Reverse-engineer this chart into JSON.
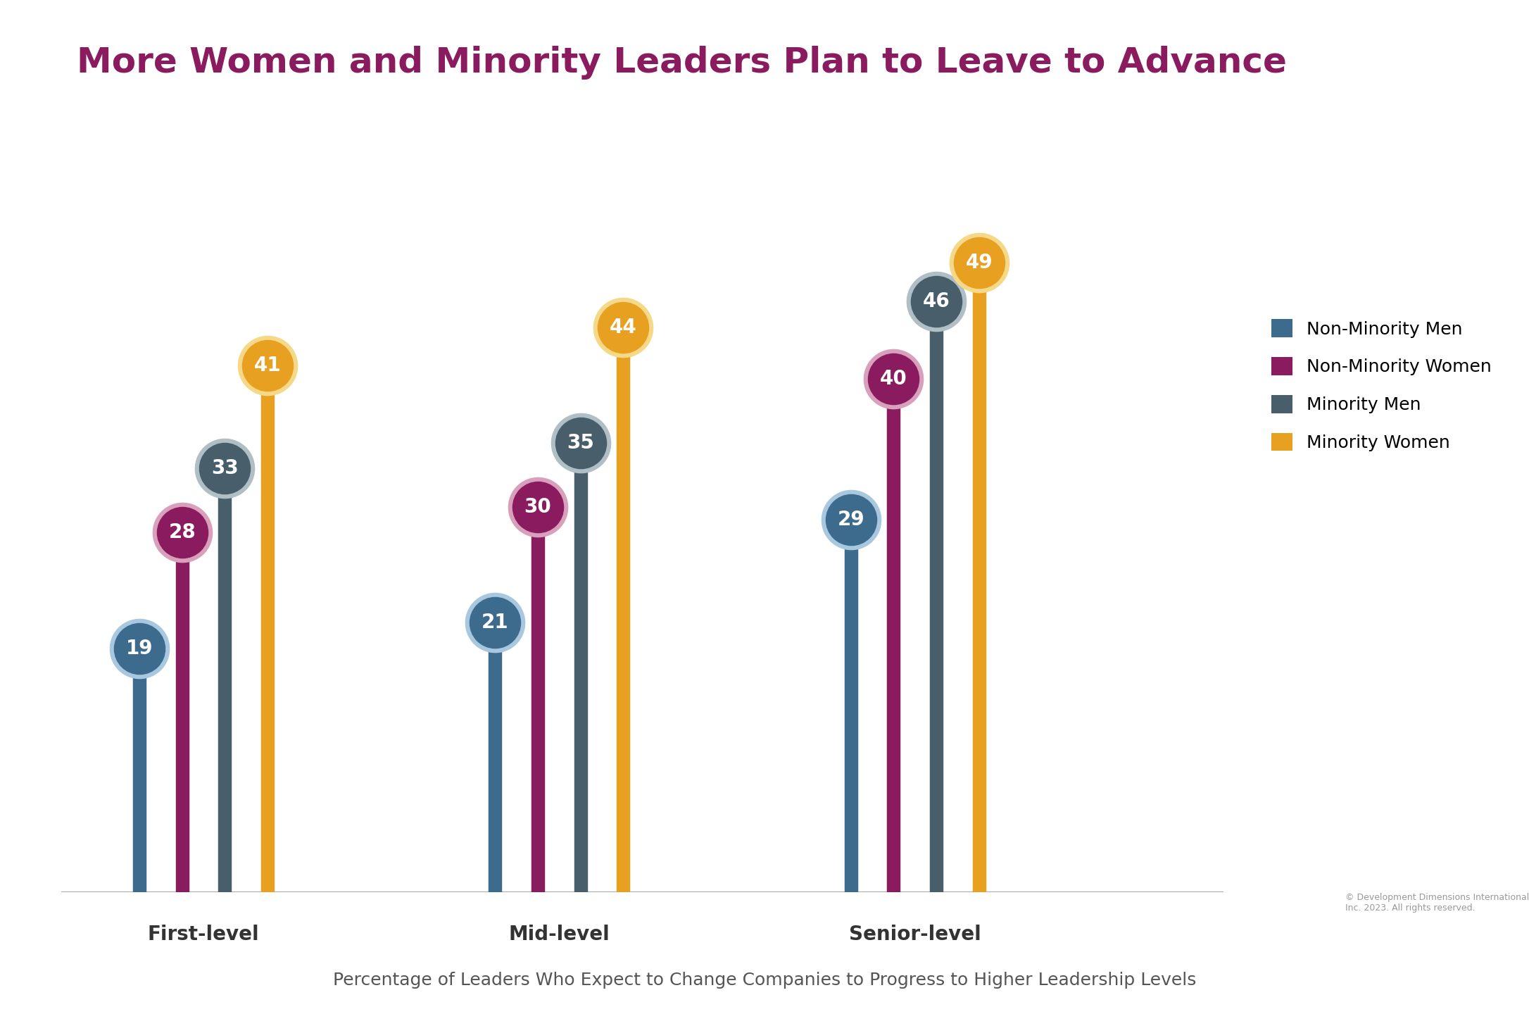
{
  "title": "More Women and Minority Leaders Plan to Leave to Advance",
  "subtitle": "Percentage of Leaders Who Expect to Change Companies to Progress to Higher Leadership Levels",
  "copyright": "© Development Dimensions International,\nInc. 2023. All rights reserved.",
  "groups": [
    "First-level",
    "Mid-level",
    "Senior-level"
  ],
  "series": [
    "Non-Minority Men",
    "Non-Minority Women",
    "Minority Men",
    "Minority Women"
  ],
  "values": {
    "First-level": [
      19,
      28,
      33,
      41
    ],
    "Mid-level": [
      21,
      30,
      35,
      44
    ],
    "Senior-level": [
      29,
      40,
      46,
      49
    ]
  },
  "colors": {
    "Non-Minority Men": "#3d6b8e",
    "Non-Minority Women": "#8b1b5f",
    "Minority Men": "#485e6b",
    "Minority Women": "#e8a020"
  },
  "circle_border_colors": {
    "Non-Minority Men": "#a8c8df",
    "Non-Minority Women": "#d8a0bb",
    "Minority Men": "#b0bec5",
    "Minority Women": "#f5d888"
  },
  "title_color": "#8b1b5f",
  "subtitle_color": "#555555",
  "group_label_color": "#333333",
  "background_color": "#ffffff",
  "ylim": [
    0,
    60
  ],
  "title_fontsize": 36,
  "subtitle_fontsize": 18,
  "group_fontsize": 20,
  "legend_fontsize": 18,
  "value_fontsize": 20,
  "group_centers": [
    0.5,
    2.0,
    3.5
  ],
  "bar_offsets": [
    -0.27,
    -0.09,
    0.09,
    0.27
  ],
  "bar_linewidth": 14,
  "scatter_size_outer": 3800,
  "scatter_size_inner": 2800
}
